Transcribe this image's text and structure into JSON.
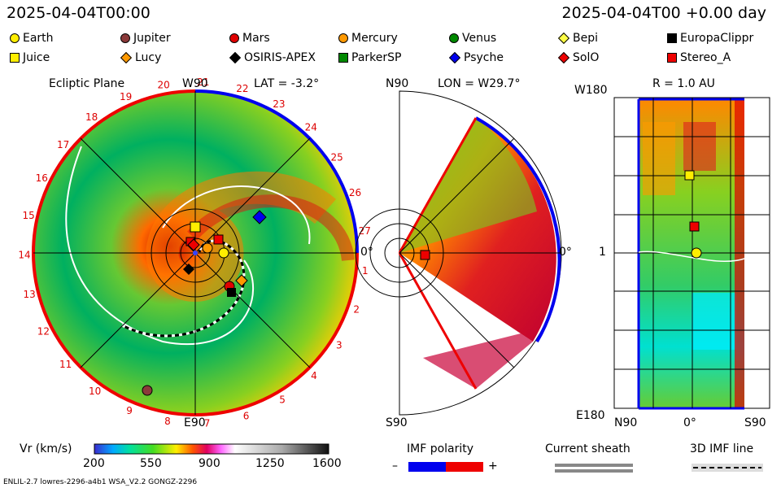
{
  "header": {
    "left_time": "2025-04-04T00:00",
    "right_time": "2025-04-04T00 +0.00 day"
  },
  "legend": [
    {
      "label": "Earth",
      "shape": "circle",
      "color": "#ffee00"
    },
    {
      "label": "Jupiter",
      "shape": "circle",
      "color": "#8b3a3a"
    },
    {
      "label": "Mars",
      "shape": "circle",
      "color": "#e00000"
    },
    {
      "label": "Mercury",
      "shape": "circle",
      "color": "#ff9900"
    },
    {
      "label": "Venus",
      "shape": "circle",
      "color": "#008800"
    },
    {
      "label": "Bepi",
      "shape": "diamond",
      "color": "#ffff44"
    },
    {
      "label": "EuropaClippr",
      "shape": "square",
      "color": "#000000"
    },
    {
      "label": "Juice",
      "shape": "square",
      "color": "#ffee00"
    },
    {
      "label": "Lucy",
      "shape": "diamond",
      "color": "#ff9900"
    },
    {
      "label": "OSIRIS-APEX",
      "shape": "diamond",
      "color": "#000000"
    },
    {
      "label": "ParkerSP",
      "shape": "square",
      "color": "#008800"
    },
    {
      "label": "Psyche",
      "shape": "diamond",
      "color": "#0000ee"
    },
    {
      "label": "SolO",
      "shape": "diamond",
      "color": "#ee0000"
    },
    {
      "label": "Stereo_A",
      "shape": "square",
      "color": "#ee0000"
    }
  ],
  "panel1": {
    "title": "Ecliptic Plane",
    "lat_label": "LAT = -3.2°",
    "top": "W90",
    "bottom": "E90",
    "right": "0°",
    "ticks": [
      "20",
      "21",
      "22",
      "23",
      "24",
      "25",
      "26",
      "27",
      "1",
      "2",
      "3",
      "4",
      "5",
      "6",
      "7",
      "8",
      "9",
      "10",
      "11",
      "12",
      "13",
      "14",
      "15",
      "16",
      "17",
      "18",
      "19"
    ]
  },
  "panel2": {
    "lon_label": "LON = W29.7°",
    "top": "N90",
    "bottom": "S90",
    "right": "0°"
  },
  "panel3": {
    "r_label": "R = 1.0 AU",
    "top_left": "W180",
    "mid_left": "1",
    "bottom_left": "E180",
    "x_left": "N90",
    "x_mid": "0°",
    "x_right": "S90"
  },
  "colorbar": {
    "label": "Vr (km/s)",
    "ticks": [
      "200",
      "550",
      "900",
      "1250",
      "1600"
    ]
  },
  "imf": {
    "label": "IMF polarity",
    "minus": "–",
    "plus": "+"
  },
  "sheath": {
    "label": "Current sheath"
  },
  "imf3d": {
    "label": "3D IMF line"
  },
  "footer": {
    "left": "ENLIL-2.7 lowres-2296-a4b1 WSA_V2.2 GONGZ-2296"
  }
}
